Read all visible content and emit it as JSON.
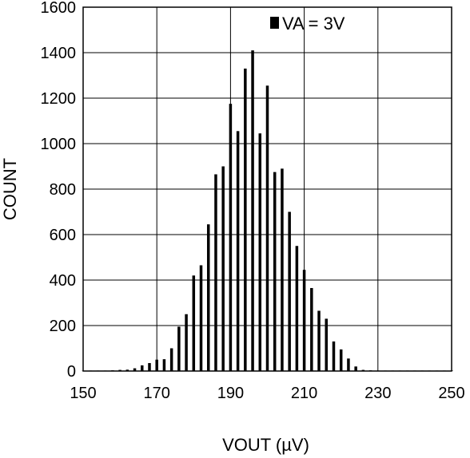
{
  "chart_data": {
    "type": "bar",
    "xlabel": "VOUT (µV)",
    "ylabel": "COUNT",
    "xlim": [
      150,
      250
    ],
    "ylim": [
      0,
      1600
    ],
    "x_ticks": [
      150,
      170,
      190,
      210,
      230,
      250
    ],
    "y_ticks": [
      0,
      200,
      400,
      600,
      800,
      1000,
      1200,
      1400,
      1600
    ],
    "grid": true,
    "legend_position": "top-right",
    "series": [
      {
        "name": "VA = 3V",
        "color": "#000000",
        "x": [
          150,
          152,
          154,
          156,
          158,
          160,
          162,
          164,
          166,
          168,
          170,
          172,
          174,
          176,
          178,
          180,
          182,
          184,
          186,
          188,
          190,
          192,
          194,
          196,
          198,
          200,
          202,
          204,
          206,
          208,
          210,
          212,
          214,
          216,
          218,
          220,
          222,
          224,
          226,
          228,
          230,
          232,
          234,
          236,
          238,
          240,
          242,
          244,
          246,
          248,
          250
        ],
        "values": [
          1,
          2,
          2,
          2,
          3,
          5,
          6,
          12,
          25,
          35,
          50,
          52,
          100,
          195,
          250,
          420,
          465,
          645,
          865,
          900,
          1175,
          1055,
          1330,
          1410,
          1045,
          1255,
          875,
          890,
          700,
          550,
          445,
          365,
          265,
          230,
          130,
          95,
          55,
          20,
          5,
          3,
          2,
          2,
          2,
          2,
          2,
          2,
          2,
          2,
          2,
          2,
          2
        ]
      }
    ]
  }
}
